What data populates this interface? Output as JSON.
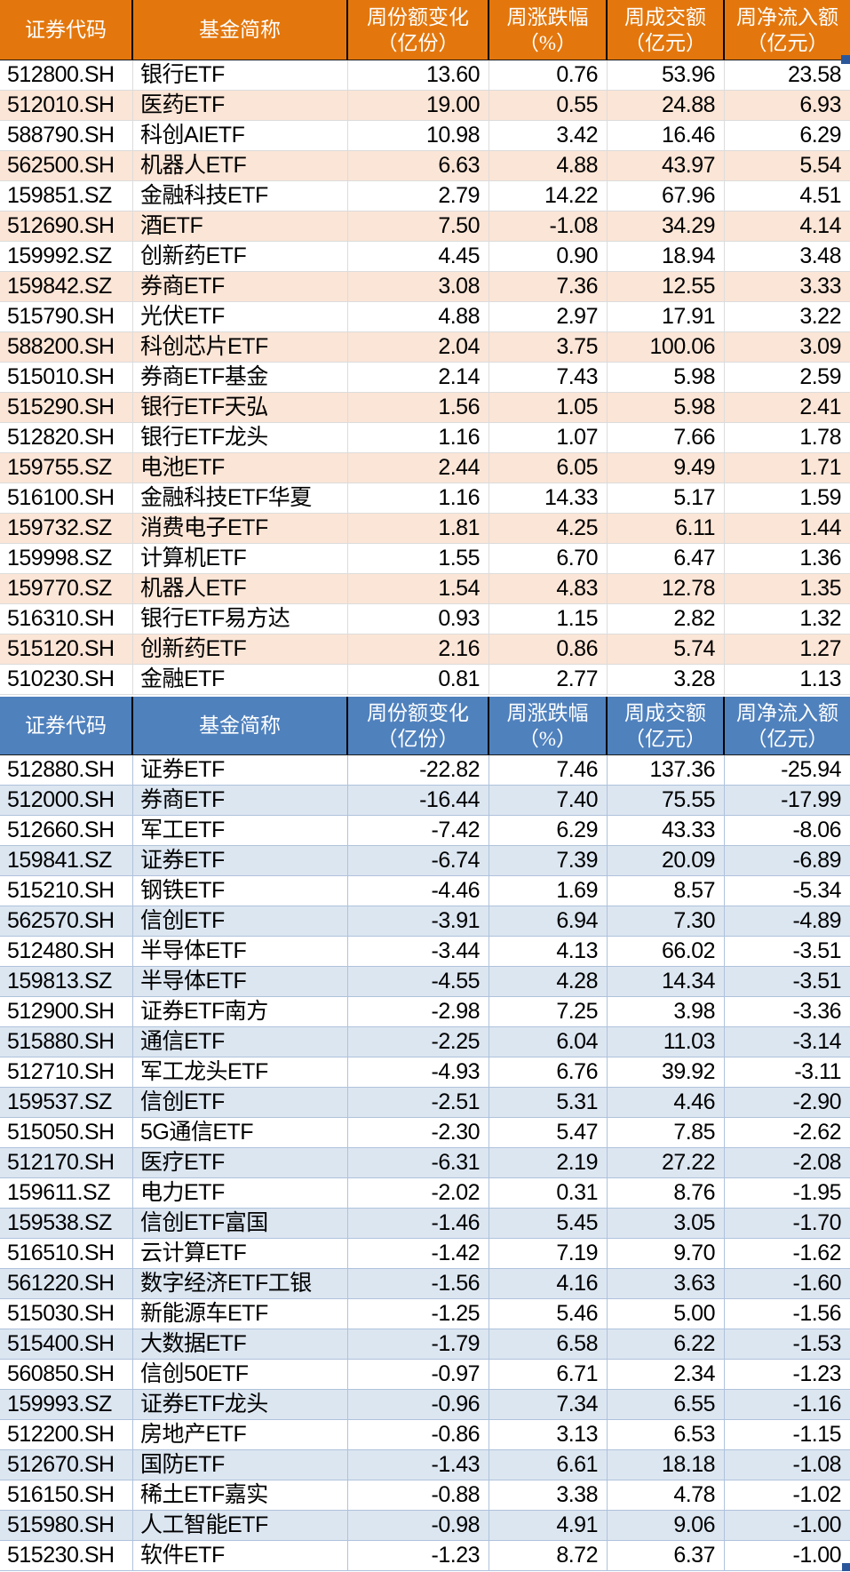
{
  "chart_data": [
    {
      "type": "table",
      "name": "weekly-net-inflow-etf-table",
      "style": {
        "header_bg": "#E3770D",
        "header_text": "#FFFFFF",
        "row_bg": "#FFFFFF",
        "alt_row_bg": "#FBE5D6",
        "grid_color": "#DCDCDC"
      },
      "columns": [
        {
          "label": "证券代码",
          "sub": "",
          "align": "left"
        },
        {
          "label": "基金简称",
          "sub": "",
          "align": "left"
        },
        {
          "label": "周份额变化",
          "sub": "（亿份）",
          "align": "right"
        },
        {
          "label": "周涨跌幅",
          "sub": "（%）",
          "align": "right"
        },
        {
          "label": "周成交额",
          "sub": "（亿元）",
          "align": "right"
        },
        {
          "label": "周净流入额",
          "sub": "（亿元）",
          "align": "right"
        }
      ],
      "rows": [
        [
          "512800.SH",
          "银行ETF",
          "13.60",
          "0.76",
          "53.96",
          "23.58"
        ],
        [
          "512010.SH",
          "医药ETF",
          "19.00",
          "0.55",
          "24.88",
          "6.93"
        ],
        [
          "588790.SH",
          "科创AIETF",
          "10.98",
          "3.42",
          "16.46",
          "6.29"
        ],
        [
          "562500.SH",
          "机器人ETF",
          "6.63",
          "4.88",
          "43.97",
          "5.54"
        ],
        [
          "159851.SZ",
          "金融科技ETF",
          "2.79",
          "14.22",
          "67.96",
          "4.51"
        ],
        [
          "512690.SH",
          "酒ETF",
          "7.50",
          "-1.08",
          "34.29",
          "4.14"
        ],
        [
          "159992.SZ",
          "创新药ETF",
          "4.45",
          "0.90",
          "18.94",
          "3.48"
        ],
        [
          "159842.SZ",
          "券商ETF",
          "3.08",
          "7.36",
          "12.55",
          "3.33"
        ],
        [
          "515790.SH",
          "光伏ETF",
          "4.88",
          "2.97",
          "17.91",
          "3.22"
        ],
        [
          "588200.SH",
          "科创芯片ETF",
          "2.04",
          "3.75",
          "100.06",
          "3.09"
        ],
        [
          "515010.SH",
          "券商ETF基金",
          "2.14",
          "7.43",
          "5.98",
          "2.59"
        ],
        [
          "515290.SH",
          "银行ETF天弘",
          "1.56",
          "1.05",
          "5.98",
          "2.41"
        ],
        [
          "512820.SH",
          "银行ETF龙头",
          "1.16",
          "1.07",
          "7.66",
          "1.78"
        ],
        [
          "159755.SZ",
          "电池ETF",
          "2.44",
          "6.05",
          "9.49",
          "1.71"
        ],
        [
          "516100.SH",
          "金融科技ETF华夏",
          "1.16",
          "14.33",
          "5.17",
          "1.59"
        ],
        [
          "159732.SZ",
          "消费电子ETF",
          "1.81",
          "4.25",
          "6.11",
          "1.44"
        ],
        [
          "159998.SZ",
          "计算机ETF",
          "1.55",
          "6.70",
          "6.47",
          "1.36"
        ],
        [
          "159770.SZ",
          "机器人ETF",
          "1.54",
          "4.83",
          "12.78",
          "1.35"
        ],
        [
          "516310.SH",
          "银行ETF易方达",
          "0.93",
          "1.15",
          "2.82",
          "1.32"
        ],
        [
          "515120.SH",
          "创新药ETF",
          "2.16",
          "0.86",
          "5.74",
          "1.27"
        ],
        [
          "510230.SH",
          "金融ETF",
          "0.81",
          "2.77",
          "3.28",
          "1.13"
        ]
      ]
    },
    {
      "type": "table",
      "name": "weekly-net-outflow-etf-table",
      "style": {
        "header_bg": "#4F81BD",
        "header_text": "#FFFFFF",
        "row_bg": "#FFFFFF",
        "alt_row_bg": "#DCE6F1",
        "grid_color": "#AFC2DC"
      },
      "columns": [
        {
          "label": "证券代码",
          "sub": "",
          "align": "left"
        },
        {
          "label": "基金简称",
          "sub": "",
          "align": "left"
        },
        {
          "label": "周份额变化",
          "sub": "（亿份）",
          "align": "right"
        },
        {
          "label": "周涨跌幅",
          "sub": "（%）",
          "align": "right"
        },
        {
          "label": "周成交额",
          "sub": "（亿元）",
          "align": "right"
        },
        {
          "label": "周净流入额",
          "sub": "（亿元）",
          "align": "right"
        }
      ],
      "rows": [
        [
          "512880.SH",
          "证券ETF",
          "-22.82",
          "7.46",
          "137.36",
          "-25.94"
        ],
        [
          "512000.SH",
          "券商ETF",
          "-16.44",
          "7.40",
          "75.55",
          "-17.99"
        ],
        [
          "512660.SH",
          "军工ETF",
          "-7.42",
          "6.29",
          "43.33",
          "-8.06"
        ],
        [
          "159841.SZ",
          "证券ETF",
          "-6.74",
          "7.39",
          "20.09",
          "-6.89"
        ],
        [
          "515210.SH",
          "钢铁ETF",
          "-4.46",
          "1.69",
          "8.57",
          "-5.34"
        ],
        [
          "562570.SH",
          "信创ETF",
          "-3.91",
          "6.94",
          "7.30",
          "-4.89"
        ],
        [
          "512480.SH",
          "半导体ETF",
          "-3.44",
          "4.13",
          "66.02",
          "-3.51"
        ],
        [
          "159813.SZ",
          "半导体ETF",
          "-4.55",
          "4.28",
          "14.34",
          "-3.51"
        ],
        [
          "512900.SH",
          "证券ETF南方",
          "-2.98",
          "7.25",
          "3.98",
          "-3.36"
        ],
        [
          "515880.SH",
          "通信ETF",
          "-2.25",
          "6.04",
          "11.03",
          "-3.14"
        ],
        [
          "512710.SH",
          "军工龙头ETF",
          "-4.93",
          "6.76",
          "39.92",
          "-3.11"
        ],
        [
          "159537.SZ",
          "信创ETF",
          "-2.51",
          "5.31",
          "4.46",
          "-2.90"
        ],
        [
          "515050.SH",
          "5G通信ETF",
          "-2.30",
          "5.47",
          "7.85",
          "-2.62"
        ],
        [
          "512170.SH",
          "医疗ETF",
          "-6.31",
          "2.19",
          "27.22",
          "-2.08"
        ],
        [
          "159611.SZ",
          "电力ETF",
          "-2.02",
          "0.31",
          "8.76",
          "-1.95"
        ],
        [
          "159538.SZ",
          "信创ETF富国",
          "-1.46",
          "5.45",
          "3.05",
          "-1.70"
        ],
        [
          "516510.SH",
          "云计算ETF",
          "-1.42",
          "7.19",
          "9.70",
          "-1.62"
        ],
        [
          "561220.SH",
          "数字经济ETF工银",
          "-1.56",
          "4.16",
          "3.63",
          "-1.60"
        ],
        [
          "515030.SH",
          "新能源车ETF",
          "-1.25",
          "5.46",
          "5.00",
          "-1.56"
        ],
        [
          "515400.SH",
          "大数据ETF",
          "-1.79",
          "6.58",
          "6.22",
          "-1.53"
        ],
        [
          "560850.SH",
          "信创50ETF",
          "-0.97",
          "6.71",
          "2.34",
          "-1.23"
        ],
        [
          "159993.SZ",
          "证券ETF龙头",
          "-0.96",
          "7.34",
          "6.55",
          "-1.16"
        ],
        [
          "512200.SH",
          "房地产ETF",
          "-0.86",
          "3.13",
          "6.53",
          "-1.15"
        ],
        [
          "512670.SH",
          "国防ETF",
          "-1.43",
          "6.61",
          "18.18",
          "-1.08"
        ],
        [
          "516150.SH",
          "稀土ETF嘉实",
          "-0.88",
          "3.38",
          "4.78",
          "-1.02"
        ],
        [
          "515980.SH",
          "人工智能ETF",
          "-0.98",
          "4.91",
          "9.06",
          "-1.00"
        ],
        [
          "515230.SH",
          "软件ETF",
          "-1.23",
          "8.72",
          "6.37",
          "-1.00"
        ]
      ]
    }
  ],
  "artifacts": {
    "selection_handle_color": "#2B579A"
  }
}
